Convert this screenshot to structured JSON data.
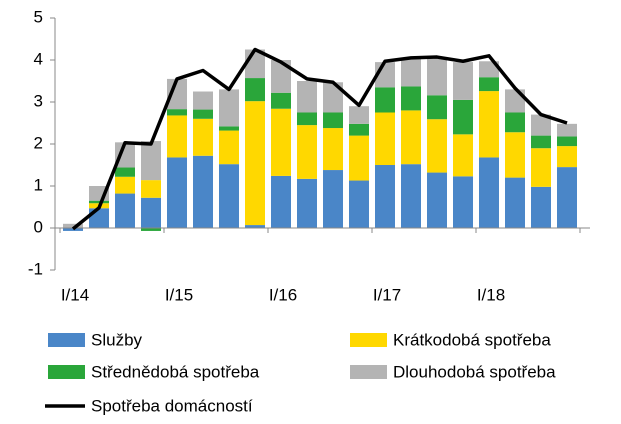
{
  "chart_data": {
    "type": "bar",
    "stacked": true,
    "categories": [
      "I/14",
      null,
      null,
      null,
      "I/15",
      null,
      null,
      null,
      "I/16",
      null,
      null,
      null,
      "I/17",
      null,
      null,
      null,
      "I/18",
      null,
      null,
      null
    ],
    "series": [
      {
        "name": "Služby",
        "color": "#4a86c8",
        "values": [
          -0.07,
          0.47,
          0.82,
          0.72,
          1.68,
          1.72,
          1.52,
          0.07,
          1.24,
          1.17,
          1.38,
          1.13,
          1.5,
          1.52,
          1.32,
          1.23,
          1.68,
          1.2,
          0.98,
          1.45
        ]
      },
      {
        "name": "Krátkodobá spotřeba",
        "color": "#ffd800",
        "values": [
          0,
          0.12,
          0.4,
          0.42,
          1.0,
          0.88,
          0.8,
          2.95,
          1.6,
          1.28,
          1.0,
          1.07,
          1.25,
          1.28,
          1.27,
          1.0,
          1.58,
          1.08,
          0.92,
          0.5
        ]
      },
      {
        "name": "Střednědobá spotřeba",
        "color": "#2aa63a",
        "values": [
          0,
          0.06,
          0.22,
          -0.07,
          0.15,
          0.22,
          0.1,
          0.55,
          0.38,
          0.3,
          0.37,
          0.28,
          0.6,
          0.57,
          0.57,
          0.82,
          0.33,
          0.47,
          0.3,
          0.23
        ]
      },
      {
        "name": "Dlouhodobá spotřeba",
        "color": "#b4b4b4",
        "values": [
          0.1,
          0.35,
          0.6,
          0.93,
          0.72,
          0.43,
          0.88,
          0.68,
          0.78,
          0.75,
          0.72,
          0.42,
          0.6,
          0.68,
          0.87,
          0.9,
          0.38,
          0.55,
          0.5,
          0.3
        ]
      },
      {
        "name": "Spotřeba domácností",
        "color": "#000000",
        "type": "line",
        "values": [
          -0.02,
          0.48,
          2.03,
          2.0,
          3.55,
          3.75,
          3.3,
          4.25,
          3.95,
          3.55,
          3.47,
          2.92,
          3.97,
          4.05,
          4.07,
          3.97,
          4.1,
          3.33,
          2.7,
          2.5
        ]
      }
    ],
    "ylim": [
      -1,
      5
    ],
    "yticks": [
      -1,
      0,
      1,
      2,
      3,
      4,
      5
    ]
  }
}
